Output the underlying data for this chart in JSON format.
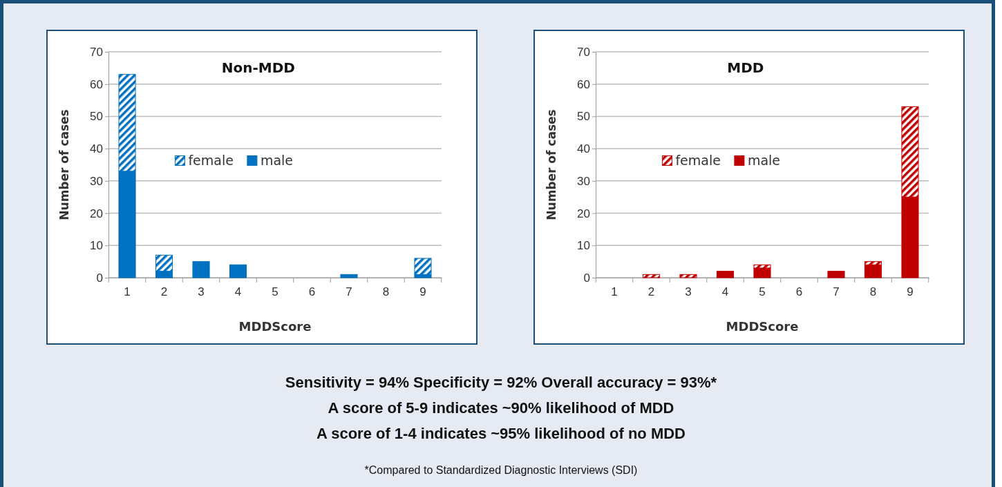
{
  "chart_data": [
    {
      "type": "bar",
      "title": "Non-MDD",
      "xlabel": "MDDScore",
      "ylabel": "Number of cases",
      "categories": [
        "1",
        "2",
        "3",
        "4",
        "5",
        "6",
        "7",
        "8",
        "9"
      ],
      "stacked": true,
      "ylim": [
        0,
        70
      ],
      "yticks": [
        0,
        10,
        20,
        30,
        40,
        50,
        60,
        70
      ],
      "grid": "y",
      "legend": "center",
      "series": [
        {
          "name": "male",
          "color": "#0070c0",
          "values": [
            33,
            2,
            5,
            4,
            0,
            0,
            1,
            0,
            1
          ]
        },
        {
          "name": "female",
          "color": "#0070c0",
          "values": [
            30,
            5,
            0,
            0,
            0,
            0,
            0,
            0,
            5
          ]
        }
      ],
      "annotations": [
        "Sensitivity = 94% Specificity = 92% Overall accuracy = 93%*",
        "A score of 5-9 indicates ~90% likelihood of MDD",
        "A score of 1-4 indicates ~95% likelihood of no MDD",
        "*Compared to Standardized Diagnostic Interviews (SDI)"
      ]
    },
    {
      "type": "bar",
      "title": "MDD",
      "xlabel": "MDDScore",
      "ylabel": "Number of cases",
      "categories": [
        "1",
        "2",
        "3",
        "4",
        "5",
        "6",
        "7",
        "8",
        "9"
      ],
      "stacked": true,
      "ylim": [
        0,
        70
      ],
      "yticks": [
        0,
        10,
        20,
        30,
        40,
        50,
        60,
        70
      ],
      "grid": "y",
      "legend": "center",
      "series": [
        {
          "name": "male",
          "color": "#c00000",
          "values": [
            0,
            0,
            0,
            2,
            3,
            0,
            2,
            4,
            25
          ]
        },
        {
          "name": "female",
          "color": "#c00000",
          "values": [
            0,
            1,
            1,
            0,
            1,
            0,
            0,
            1,
            28
          ]
        }
      ]
    }
  ]
}
